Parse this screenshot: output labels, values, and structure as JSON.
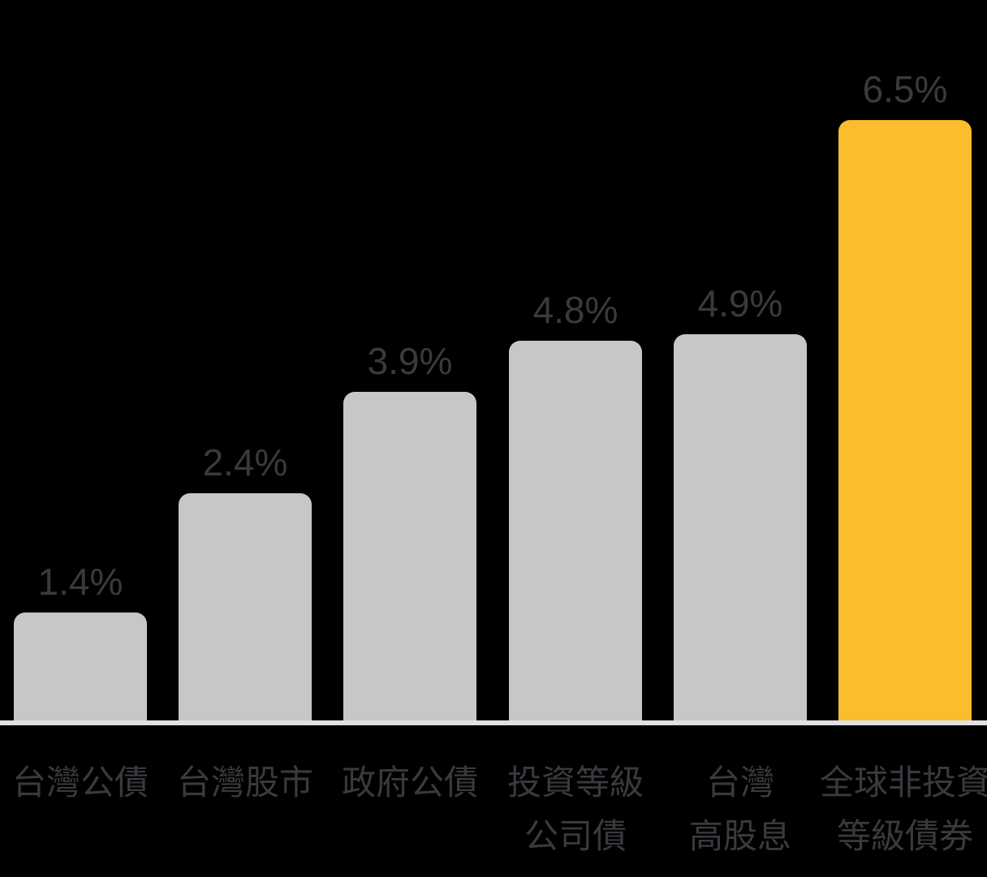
{
  "chart_data": {
    "type": "bar",
    "title": "",
    "unit": "%",
    "categories": [
      "台灣公債",
      "台灣股市",
      "政府公債",
      "投資等級公司債",
      "台灣高股息",
      "全球非投資等級債券"
    ],
    "values": [
      1.4,
      2.4,
      3.9,
      4.8,
      4.9,
      6.5
    ],
    "highlighted_category": "全球非投資等級債券",
    "layout_hints": {
      "grid": "off",
      "axes": "none",
      "value_labels_position": "above-bar",
      "baseline": "single light line under bars",
      "note": "bar heights are stylized / not strictly proportional to values"
    },
    "bars": [
      {
        "value_label": "1.4%",
        "label_lines": [
          "台灣公債"
        ]
      },
      {
        "value_label": "2.4%",
        "label_lines": [
          "台灣股市"
        ]
      },
      {
        "value_label": "3.9%",
        "label_lines": [
          "政府公債"
        ]
      },
      {
        "value_label": "4.8%",
        "label_lines": [
          "投資等級",
          "公司債"
        ]
      },
      {
        "value_label": "4.9%",
        "label_lines": [
          "台灣",
          "高股息"
        ]
      },
      {
        "value_label": "6.5%",
        "label_lines": [
          "全球非投資",
          "等級債券"
        ]
      }
    ],
    "colors": {
      "background": "#000000",
      "bar_default": "#C7C7C9",
      "bar_highlight": "#FBBC2D",
      "baseline": "#E0E1E3",
      "text": "#393A3E"
    }
  }
}
